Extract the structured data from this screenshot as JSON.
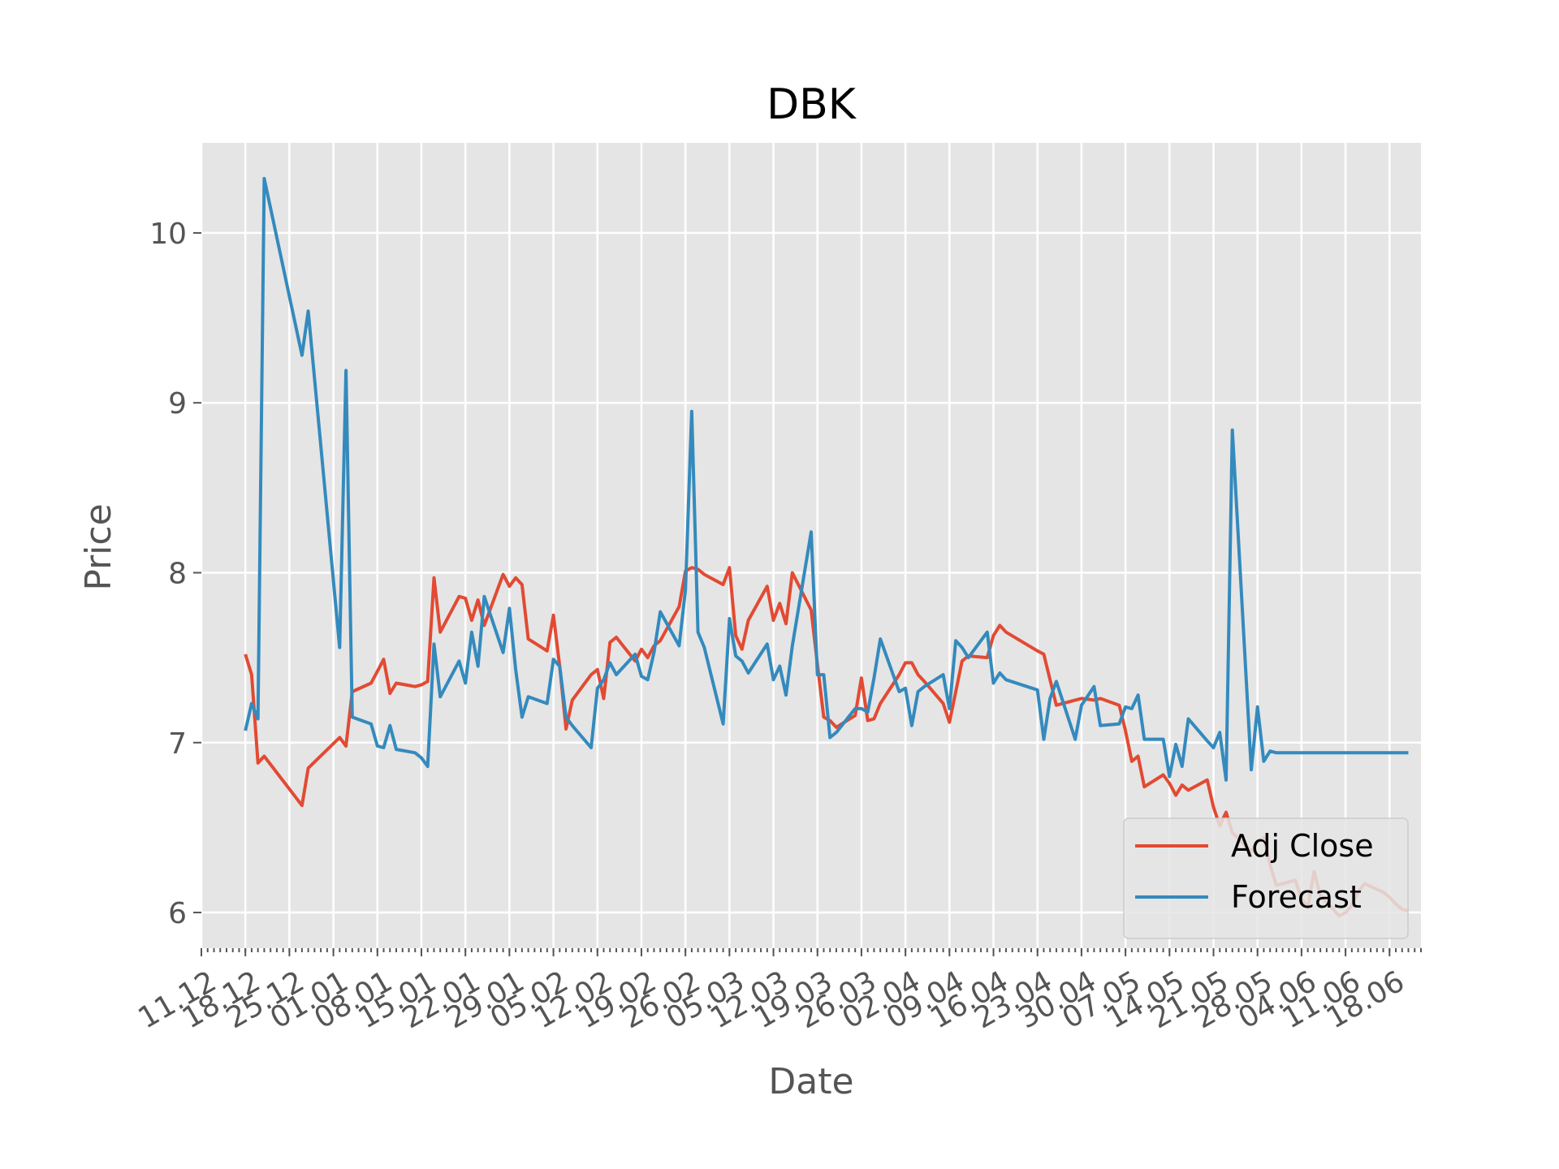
{
  "chart_data": {
    "type": "line",
    "title": "DBK",
    "xlabel": "Date",
    "ylabel": "Price",
    "ylim": [
      5.79,
      10.53
    ],
    "yticks": [
      6,
      7,
      8,
      9,
      10
    ],
    "ytick_labels": [
      "6",
      "7",
      "8",
      "9",
      "10"
    ],
    "xlim": [
      "2018-12-11",
      "2019-06-23"
    ],
    "xticks": [
      "2018-12-11",
      "2018-12-18",
      "2018-12-25",
      "2019-01-01",
      "2019-01-08",
      "2019-01-15",
      "2019-01-22",
      "2019-01-29",
      "2019-02-05",
      "2019-02-12",
      "2019-02-19",
      "2019-02-26",
      "2019-03-05",
      "2019-03-12",
      "2019-03-19",
      "2019-03-26",
      "2019-04-02",
      "2019-04-09",
      "2019-04-16",
      "2019-04-23",
      "2019-04-30",
      "2019-05-07",
      "2019-05-14",
      "2019-05-21",
      "2019-05-28",
      "2019-06-04",
      "2019-06-11",
      "2019-06-18"
    ],
    "xtick_labels": [
      "11.12",
      "18.12",
      "25.12",
      "01.01",
      "08.01",
      "15.01",
      "22.01",
      "29.01",
      "05.02",
      "12.02",
      "19.02",
      "26.02",
      "05.03",
      "12.03",
      "19.03",
      "26.03",
      "02.04",
      "09.04",
      "16.04",
      "23.04",
      "30.04",
      "07.05",
      "14.05",
      "21.05",
      "28.05",
      "04.06",
      "11.06",
      "18.06"
    ],
    "grid": true,
    "legend_position": "lower right",
    "series": [
      {
        "name": "Adj Close",
        "color": "#E24A33",
        "x": [
          "2018-12-18",
          "2018-12-19",
          "2018-12-20",
          "2018-12-21",
          "2018-12-27",
          "2018-12-28",
          "2019-01-02",
          "2019-01-03",
          "2019-01-04",
          "2019-01-07",
          "2019-01-08",
          "2019-01-09",
          "2019-01-10",
          "2019-01-11",
          "2019-01-14",
          "2019-01-15",
          "2019-01-16",
          "2019-01-17",
          "2019-01-18",
          "2019-01-21",
          "2019-01-22",
          "2019-01-23",
          "2019-01-24",
          "2019-01-25",
          "2019-01-28",
          "2019-01-29",
          "2019-01-30",
          "2019-01-31",
          "2019-02-01",
          "2019-02-04",
          "2019-02-05",
          "2019-02-06",
          "2019-02-07",
          "2019-02-08",
          "2019-02-11",
          "2019-02-12",
          "2019-02-13",
          "2019-02-14",
          "2019-02-15",
          "2019-02-18",
          "2019-02-19",
          "2019-02-20",
          "2019-02-21",
          "2019-02-22",
          "2019-02-25",
          "2019-02-26",
          "2019-02-27",
          "2019-02-28",
          "2019-03-01",
          "2019-03-04",
          "2019-03-05",
          "2019-03-06",
          "2019-03-07",
          "2019-03-08",
          "2019-03-11",
          "2019-03-12",
          "2019-03-13",
          "2019-03-14",
          "2019-03-15",
          "2019-03-18",
          "2019-03-19",
          "2019-03-20",
          "2019-03-21",
          "2019-03-22",
          "2019-03-25",
          "2019-03-26",
          "2019-03-27",
          "2019-03-28",
          "2019-03-29",
          "2019-04-01",
          "2019-04-02",
          "2019-04-03",
          "2019-04-04",
          "2019-04-05",
          "2019-04-08",
          "2019-04-09",
          "2019-04-10",
          "2019-04-11",
          "2019-04-12",
          "2019-04-15",
          "2019-04-16",
          "2019-04-17",
          "2019-04-18",
          "2019-04-23",
          "2019-04-24",
          "2019-04-25",
          "2019-04-26",
          "2019-04-29",
          "2019-04-30",
          "2019-05-02",
          "2019-05-03",
          "2019-05-06",
          "2019-05-07",
          "2019-05-08",
          "2019-05-09",
          "2019-05-10",
          "2019-05-13",
          "2019-05-14",
          "2019-05-15",
          "2019-05-16",
          "2019-05-17",
          "2019-05-20",
          "2019-05-21",
          "2019-05-22",
          "2019-05-23",
          "2019-05-24",
          "2019-05-27",
          "2019-05-28",
          "2019-05-29",
          "2019-05-30",
          "2019-05-31",
          "2019-06-03",
          "2019-06-04",
          "2019-06-05",
          "2019-06-06",
          "2019-06-07",
          "2019-06-10",
          "2019-06-11",
          "2019-06-12",
          "2019-06-13",
          "2019-06-14",
          "2019-06-17",
          "2019-06-18",
          "2019-06-19",
          "2019-06-20",
          "2019-06-21"
        ],
        "y": [
          7.52,
          7.4,
          6.88,
          6.92,
          6.63,
          6.85,
          7.03,
          6.98,
          7.3,
          7.35,
          7.42,
          7.49,
          7.29,
          7.35,
          7.33,
          7.34,
          7.36,
          7.97,
          7.65,
          7.86,
          7.85,
          7.72,
          7.84,
          7.69,
          7.99,
          7.92,
          7.97,
          7.93,
          7.61,
          7.54,
          7.75,
          7.45,
          7.08,
          7.25,
          7.4,
          7.43,
          7.26,
          7.59,
          7.62,
          7.48,
          7.55,
          7.5,
          7.57,
          7.6,
          7.8,
          8.01,
          8.03,
          8.02,
          7.99,
          7.93,
          8.03,
          7.63,
          7.55,
          7.72,
          7.92,
          7.72,
          7.82,
          7.7,
          8.0,
          7.78,
          7.46,
          7.15,
          7.13,
          7.09,
          7.16,
          7.38,
          7.13,
          7.14,
          7.23,
          7.4,
          7.47,
          7.47,
          7.4,
          7.36,
          7.23,
          7.12,
          7.3,
          7.48,
          7.51,
          7.5,
          7.63,
          7.69,
          7.65,
          7.54,
          7.52,
          7.37,
          7.22,
          7.25,
          7.26,
          7.25,
          7.26,
          7.22,
          7.07,
          6.89,
          6.92,
          6.74,
          6.81,
          6.76,
          6.69,
          6.75,
          6.72,
          6.78,
          6.62,
          6.51,
          6.59,
          6.47,
          6.36,
          6.42,
          6.44,
          6.28,
          6.16,
          6.19,
          6.08,
          6.03,
          6.24,
          6.1,
          5.98,
          6.0,
          6.04,
          6.12,
          6.17,
          6.12,
          6.09,
          6.05,
          6.02,
          6.01
        ]
      },
      {
        "name": "Forecast",
        "color": "#348ABD",
        "x": [
          "2018-12-18",
          "2018-12-19",
          "2018-12-20",
          "2018-12-21",
          "2018-12-27",
          "2018-12-28",
          "2019-01-02",
          "2019-01-03",
          "2019-01-04",
          "2019-01-07",
          "2019-01-08",
          "2019-01-09",
          "2019-01-10",
          "2019-01-11",
          "2019-01-14",
          "2019-01-15",
          "2019-01-16",
          "2019-01-17",
          "2019-01-18",
          "2019-01-21",
          "2019-01-22",
          "2019-01-23",
          "2019-01-24",
          "2019-01-25",
          "2019-01-28",
          "2019-01-29",
          "2019-01-30",
          "2019-01-31",
          "2019-02-01",
          "2019-02-04",
          "2019-02-05",
          "2019-02-06",
          "2019-02-07",
          "2019-02-08",
          "2019-02-11",
          "2019-02-12",
          "2019-02-13",
          "2019-02-14",
          "2019-02-15",
          "2019-02-18",
          "2019-02-19",
          "2019-02-20",
          "2019-02-21",
          "2019-02-22",
          "2019-02-25",
          "2019-02-26",
          "2019-02-27",
          "2019-02-28",
          "2019-03-01",
          "2019-03-04",
          "2019-03-05",
          "2019-03-06",
          "2019-03-07",
          "2019-03-08",
          "2019-03-11",
          "2019-03-12",
          "2019-03-13",
          "2019-03-14",
          "2019-03-15",
          "2019-03-18",
          "2019-03-19",
          "2019-03-20",
          "2019-03-21",
          "2019-03-22",
          "2019-03-25",
          "2019-03-26",
          "2019-03-27",
          "2019-03-28",
          "2019-03-29",
          "2019-04-01",
          "2019-04-02",
          "2019-04-03",
          "2019-04-04",
          "2019-04-05",
          "2019-04-08",
          "2019-04-09",
          "2019-04-10",
          "2019-04-11",
          "2019-04-12",
          "2019-04-15",
          "2019-04-16",
          "2019-04-17",
          "2019-04-18",
          "2019-04-23",
          "2019-04-24",
          "2019-04-25",
          "2019-04-26",
          "2019-04-29",
          "2019-04-30",
          "2019-05-02",
          "2019-05-03",
          "2019-05-06",
          "2019-05-07",
          "2019-05-08",
          "2019-05-09",
          "2019-05-10",
          "2019-05-13",
          "2019-05-14",
          "2019-05-15",
          "2019-05-16",
          "2019-05-17",
          "2019-05-20",
          "2019-05-21",
          "2019-05-22",
          "2019-05-23",
          "2019-05-24",
          "2019-05-27",
          "2019-05-28",
          "2019-05-29",
          "2019-05-30",
          "2019-05-31",
          "2019-06-03",
          "2019-06-04",
          "2019-06-05",
          "2019-06-06",
          "2019-06-07",
          "2019-06-10",
          "2019-06-11",
          "2019-06-12",
          "2019-06-13",
          "2019-06-14",
          "2019-06-17",
          "2019-06-18",
          "2019-06-19",
          "2019-06-20",
          "2019-06-21"
        ],
        "y": [
          7.07,
          7.23,
          7.14,
          10.32,
          9.28,
          9.54,
          7.56,
          9.19,
          7.15,
          7.11,
          6.98,
          6.97,
          7.1,
          6.96,
          6.94,
          6.91,
          6.86,
          7.58,
          7.27,
          7.48,
          7.35,
          7.65,
          7.45,
          7.86,
          7.53,
          7.79,
          7.43,
          7.15,
          7.27,
          7.23,
          7.49,
          7.45,
          7.15,
          7.1,
          6.97,
          7.32,
          7.37,
          7.47,
          7.4,
          7.52,
          7.39,
          7.37,
          7.53,
          7.77,
          7.57,
          7.9,
          8.95,
          7.65,
          7.56,
          7.11,
          7.73,
          7.51,
          7.48,
          7.41,
          7.58,
          7.37,
          7.45,
          7.28,
          7.57,
          8.24,
          7.4,
          7.4,
          7.03,
          7.06,
          7.2,
          7.2,
          7.18,
          7.38,
          7.61,
          7.3,
          7.32,
          7.1,
          7.3,
          7.33,
          7.4,
          7.2,
          7.6,
          7.56,
          7.5,
          7.65,
          7.35,
          7.41,
          7.37,
          7.31,
          7.02,
          7.26,
          7.36,
          7.02,
          7.22,
          7.33,
          7.1,
          7.11,
          7.21,
          7.2,
          7.28,
          7.02,
          7.02,
          6.8,
          6.99,
          6.86,
          7.14,
          7.01,
          6.97,
          7.06,
          6.78,
          8.84,
          6.84,
          7.21,
          6.89,
          6.95,
          6.94,
          6.94,
          6.94,
          6.94,
          6.94,
          6.94,
          6.94,
          6.94,
          6.94,
          6.94,
          6.94,
          6.94,
          6.94,
          6.94,
          6.94,
          6.94
        ]
      }
    ]
  }
}
